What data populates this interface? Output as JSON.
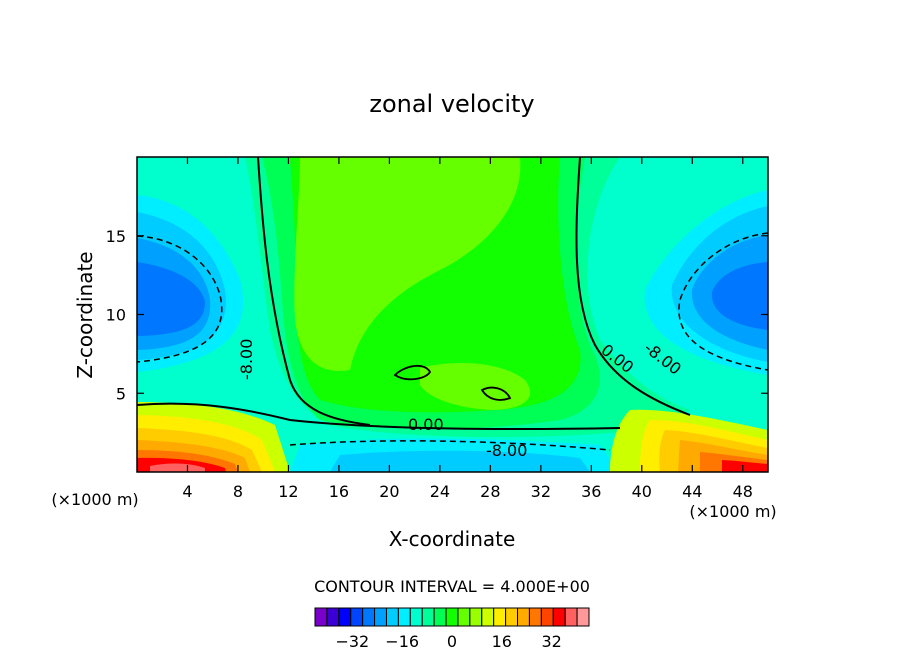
{
  "chart_data": {
    "type": "heatmap",
    "subtype": "filled-contour",
    "title": "zonal velocity",
    "xlabel": "X-coordinate",
    "ylabel": "Z-coordinate",
    "x_unit_note": "(×1000 m)",
    "xlim": [
      0,
      50
    ],
    "ylim": [
      0,
      20
    ],
    "xticks": [
      4,
      8,
      12,
      16,
      20,
      24,
      28,
      32,
      36,
      40,
      44,
      48
    ],
    "yticks": [
      5,
      10,
      15
    ],
    "contour_interval_text": "CONTOUR INTERVAL = 4.000E+00",
    "contour_labels": [
      "0.00",
      "0.00",
      "-8.00",
      "-8.00",
      "-8.00"
    ],
    "colorbar": {
      "levels": [
        -36,
        -32,
        -28,
        -24,
        -20,
        -16,
        -12,
        -8,
        -4,
        0,
        4,
        8,
        12,
        16,
        20,
        24,
        28,
        32,
        36
      ],
      "tick_values": [
        -32,
        -16,
        0,
        16,
        32
      ],
      "tick_labels": [
        "−32",
        "−16",
        "0",
        "16",
        "32"
      ],
      "colors": [
        "#7a00cc",
        "#3a00d6",
        "#0000ff",
        "#0044ff",
        "#0077ff",
        "#00a0ff",
        "#00ccff",
        "#00eeff",
        "#00ffcc",
        "#00ff99",
        "#00ff55",
        "#11ff00",
        "#66ff00",
        "#99ff00",
        "#ccff00",
        "#ffee00",
        "#ffcc00",
        "#ffaa00",
        "#ff7700",
        "#ff4400",
        "#ff0000",
        "#ff6060",
        "#ff9999"
      ]
    },
    "grid": false,
    "legend": "colorbar at bottom"
  }
}
